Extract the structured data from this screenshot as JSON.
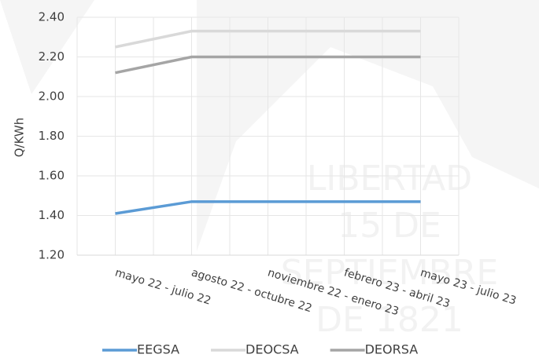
{
  "chart_data": {
    "type": "line",
    "y_label": "Q/KWh",
    "categories": [
      "mayo 22 - julio 22",
      "agosto 22 - octubre 22",
      "noviembre 22 - enero 23",
      "febrero 23 - abril 23",
      "mayo 23 - julio 23"
    ],
    "series": [
      {
        "name": "EEGSA",
        "color": "#5b9bd5",
        "values": [
          1.41,
          1.47,
          1.47,
          1.47,
          1.47
        ]
      },
      {
        "name": "DEOCSA",
        "color": "#d9d9d9",
        "values": [
          2.25,
          2.33,
          2.33,
          2.33,
          2.33
        ]
      },
      {
        "name": "DEORSA",
        "color": "#a5a5a5",
        "values": [
          2.12,
          2.2,
          2.2,
          2.2,
          2.2
        ]
      }
    ],
    "ylim": [
      1.2,
      2.4
    ],
    "yticks": [
      {
        "value": 1.2,
        "label": "1.20"
      },
      {
        "value": 1.4,
        "label": "1.40"
      },
      {
        "value": 1.6,
        "label": "1.60"
      },
      {
        "value": 1.8,
        "label": "1.80"
      },
      {
        "value": 2.0,
        "label": "2.00"
      },
      {
        "value": 2.2,
        "label": "2.20"
      },
      {
        "value": 2.4,
        "label": "2.40"
      }
    ],
    "grid": true,
    "legend": "bottom",
    "watermark": [
      "LIBERTAD",
      "15 DE",
      "SEPTIEMBRE",
      "DE 1821"
    ]
  }
}
